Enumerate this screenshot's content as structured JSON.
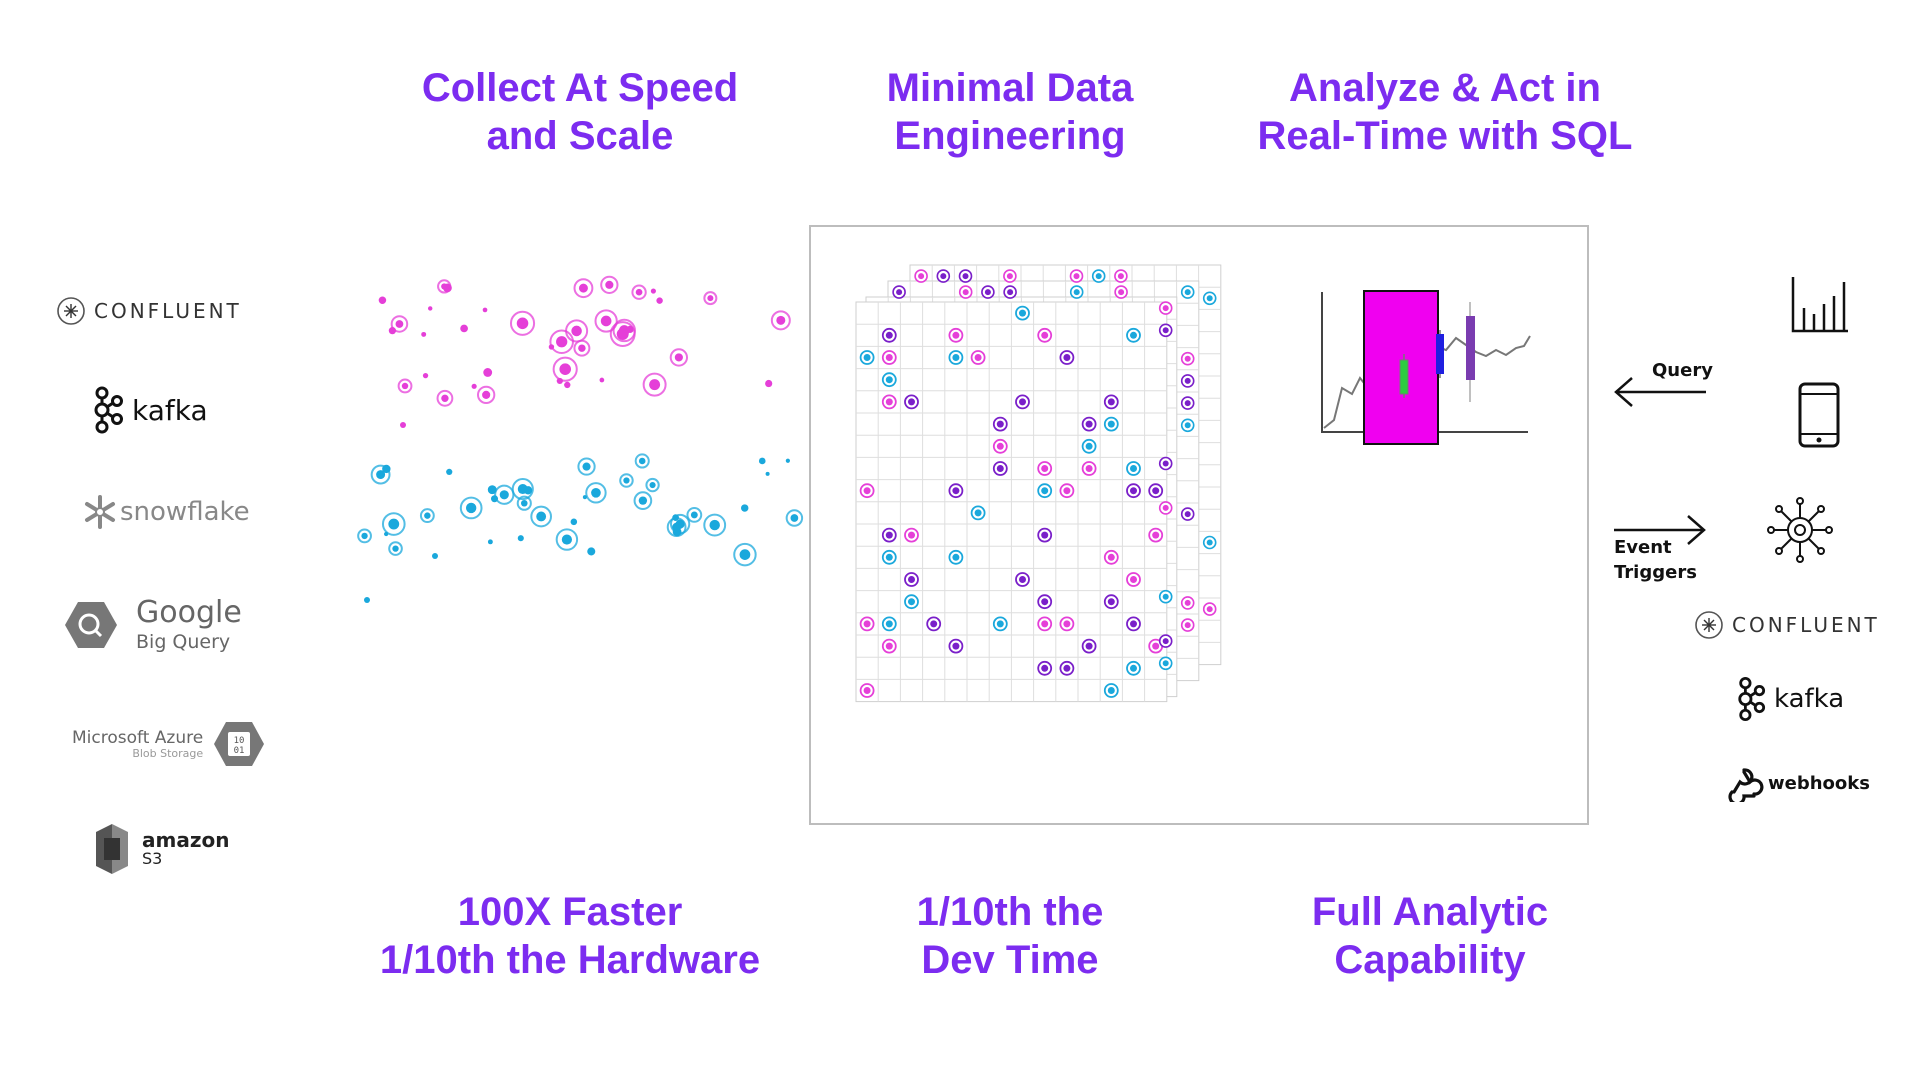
{
  "headlines": {
    "collect": [
      "Collect At Speed",
      "and Scale"
    ],
    "engineering": [
      "Minimal Data",
      "Engineering"
    ],
    "analyze": [
      "Analyze & Act in",
      "Real-Time with SQL"
    ],
    "faster": [
      "100X Faster",
      "1/10th the Hardware"
    ],
    "devtime": [
      "1/10th the",
      "Dev Time"
    ],
    "capability": [
      "Full Analytic",
      "Capability"
    ]
  },
  "sources": {
    "confluent": "CONFLUENT",
    "kafka": "kafka",
    "snowflake": "snowflake",
    "google": "Google",
    "bigquery": "Big Query",
    "azure": "Microsoft Azure",
    "azure_sub": "Blob Storage",
    "azure_badge": "10 01",
    "amazon": "amazon",
    "s3": "S3"
  },
  "outputs": {
    "query_label": "Query",
    "event_label_1": "Event",
    "event_label_2": "Triggers",
    "confluent": "CONFLUENT",
    "kafka": "kafka",
    "webhooks": "webhooks"
  },
  "colors": {
    "accent": "#7c2cf0",
    "magenta": "#e53fd8",
    "cyan": "#1aa8dc",
    "purple": "#7a1fc9",
    "chart_box": "#f000f0"
  },
  "icons": [
    "confluent-logo-icon",
    "kafka-logo-icon",
    "snowflake-logo-icon",
    "bigquery-logo-icon",
    "azure-blob-icon",
    "amazon-s3-icon",
    "bar-chart-icon",
    "mobile-phone-icon",
    "network-hub-icon",
    "webhooks-icon"
  ]
}
